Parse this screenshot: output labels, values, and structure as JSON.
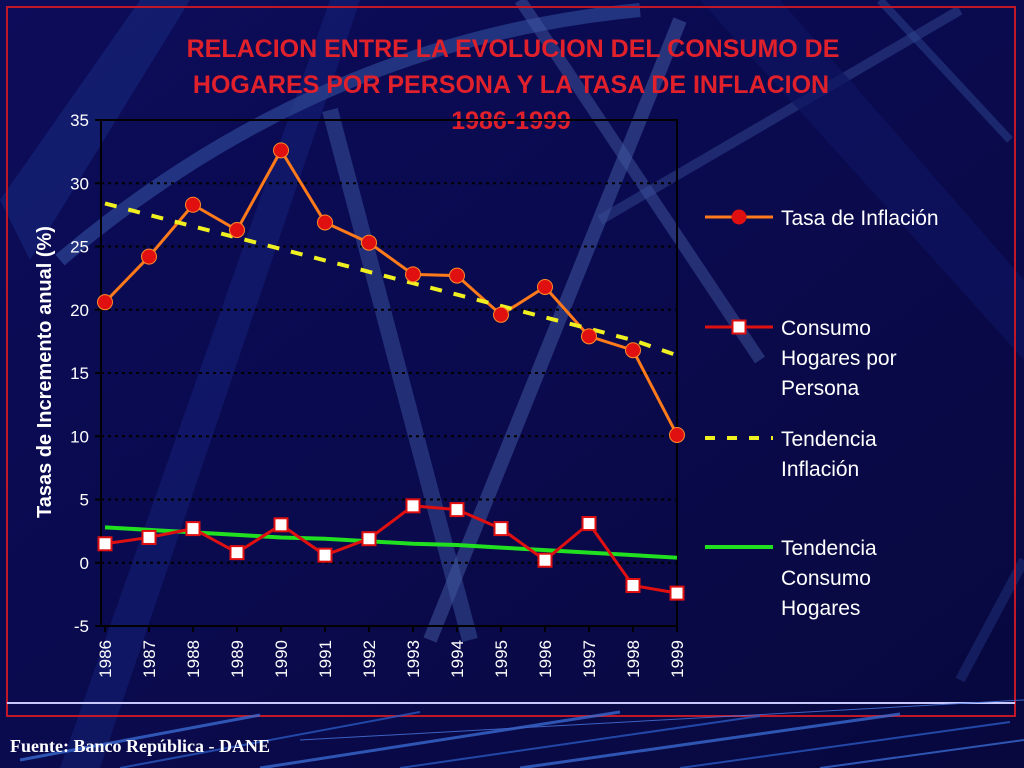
{
  "source": "Fuente: Banco República - DANE",
  "colors": {
    "background": "#0a0a50",
    "title": "#e0202a",
    "inflation": "#ff7a1a",
    "inflation_marker": "#e01010",
    "consumption": "#e01010",
    "trend_inflation": "#f0f020",
    "trend_consumption": "#20e020"
  },
  "chart_data": {
    "type": "line",
    "title": "RELACION ENTRE LA EVOLUCION DEL CONSUMO DE HOGARES POR PERSONA Y LA TASA DE INFLACION 1986-1999",
    "title_lines": [
      "RELACION ENTRE LA EVOLUCION DEL CONSUMO DE",
      "HOGARES POR PERSONA Y LA TASA DE INFLACION",
      "1986-1999"
    ],
    "ylabel": "Tasas de Incremento anual (%)",
    "xlabel": "",
    "ylim": [
      -5,
      35
    ],
    "yticks": [
      -5,
      0,
      5,
      10,
      15,
      20,
      25,
      30,
      35
    ],
    "grid": "dotted horizontal",
    "legend_position": "right",
    "categories": [
      "1986",
      "1987",
      "1988",
      "1989",
      "1990",
      "1991",
      "1992",
      "1993",
      "1994",
      "1995",
      "1996",
      "1997",
      "1998",
      "1999"
    ],
    "series": [
      {
        "name": "Tasa de Inflación",
        "legend_lines": [
          "Tasa de Inflación"
        ],
        "style": "line-circle",
        "values": [
          20.6,
          24.2,
          28.3,
          26.3,
          32.6,
          26.9,
          25.3,
          22.8,
          22.7,
          19.6,
          21.8,
          17.9,
          16.8,
          10.1
        ]
      },
      {
        "name": "Consumo Hogares por Persona",
        "legend_lines": [
          "Consumo",
          "Hogares por",
          "Persona"
        ],
        "style": "line-square",
        "values": [
          1.5,
          2.0,
          2.7,
          0.8,
          3.0,
          0.6,
          1.9,
          4.5,
          4.2,
          2.7,
          0.2,
          3.1,
          -1.8,
          -2.4
        ]
      },
      {
        "name": "Tendencia Inflación",
        "legend_lines": [
          "Tendencia",
          "Inflación"
        ],
        "style": "dashed",
        "values": [
          28.4,
          27.5,
          26.6,
          25.7,
          24.8,
          23.9,
          23.0,
          22.1,
          21.2,
          20.3,
          19.4,
          18.5,
          17.6,
          16.4
        ]
      },
      {
        "name": "Tendencia Consumo Hogares",
        "legend_lines": [
          "Tendencia",
          "Consumo",
          "Hogares"
        ],
        "style": "solid",
        "values": [
          2.8,
          2.6,
          2.4,
          2.2,
          2.0,
          1.9,
          1.7,
          1.5,
          1.4,
          1.2,
          1.0,
          0.8,
          0.6,
          0.4
        ]
      }
    ]
  }
}
